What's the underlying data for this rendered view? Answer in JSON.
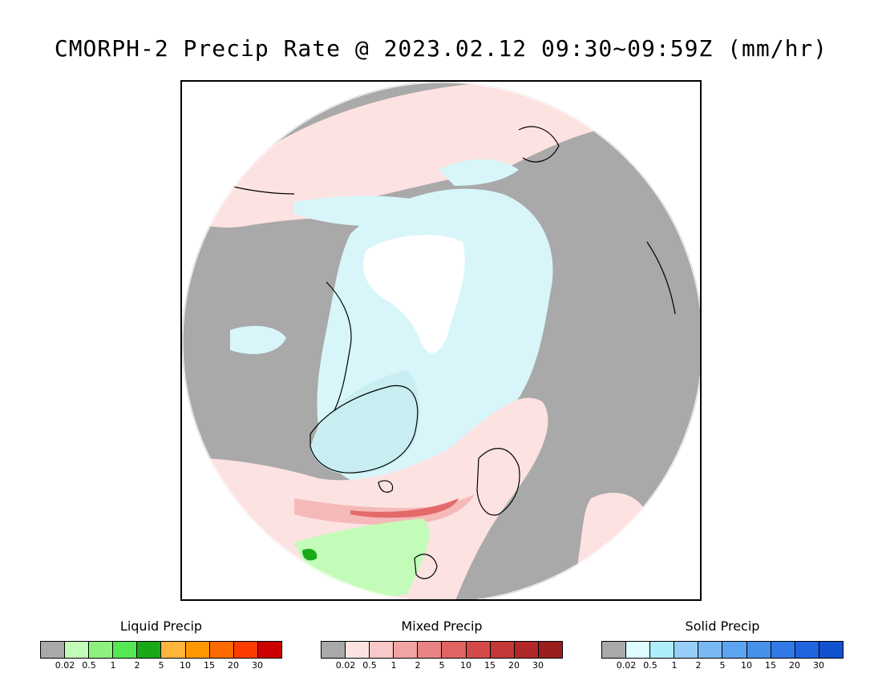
{
  "title": "CMORPH-2 Precip Rate @ 2023.02.12 09:30~09:59Z (mm/hr)",
  "colors": {
    "no_precip_land": "#a9a9a9",
    "ocean_mixed_light": "#fde2e2",
    "snow_light": "#d8f6fa",
    "ice_white": "#ffffff",
    "rain_light": "#c3fcb8",
    "rain_mid": "#8ef07d",
    "rain_dark": "#18a818",
    "mixed_mid": "#f6b9b9",
    "mixed_strong": "#e46a6a",
    "coast": "#000000"
  },
  "legends": [
    {
      "title": "Liquid Precip",
      "swatches": [
        "#a9a9a9",
        "#c3fcb8",
        "#8ef07d",
        "#54e854",
        "#18a818",
        "#ffb43c",
        "#ff9800",
        "#ff6a00",
        "#ff3c00",
        "#cc0000"
      ],
      "ticks": [
        "0.02",
        "0.5",
        "1",
        "2",
        "5",
        "10",
        "15",
        "20",
        "30"
      ]
    },
    {
      "title": "Mixed Precip",
      "swatches": [
        "#a9a9a9",
        "#fde2e2",
        "#f9c8c8",
        "#f2a3a3",
        "#ea8484",
        "#e06464",
        "#d44a4a",
        "#c53838",
        "#b02828",
        "#9a1e1e"
      ],
      "ticks": [
        "0.02",
        "0.5",
        "1",
        "2",
        "5",
        "10",
        "15",
        "20",
        "30"
      ]
    },
    {
      "title": "Solid Precip",
      "swatches": [
        "#a9a9a9",
        "#dcfcff",
        "#aeeefa",
        "#96cef8",
        "#78b8f4",
        "#5ca4f0",
        "#4690ec",
        "#327ae8",
        "#2064e0",
        "#1252d0"
      ],
      "ticks": [
        "0.02",
        "0.5",
        "1",
        "2",
        "5",
        "10",
        "15",
        "20",
        "30"
      ]
    }
  ]
}
